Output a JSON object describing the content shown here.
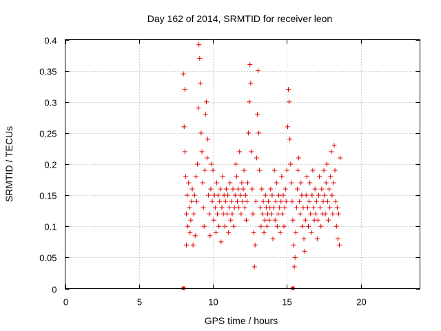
{
  "chart_data": {
    "type": "scatter",
    "title": "Day 162 of 2014, SRMTID for receiver leon",
    "xlabel": "GPS time / hours",
    "ylabel": "SRMTID / TECUs",
    "xlim": [
      0,
      24
    ],
    "ylim": [
      0,
      0.4
    ],
    "xticks": [
      0,
      5,
      10,
      15,
      20
    ],
    "xtick_labels": [
      "0",
      "5",
      "10",
      "15",
      "20"
    ],
    "yticks": [
      0,
      0.05,
      0.1,
      0.15,
      0.2,
      0.25,
      0.3,
      0.35,
      0.4
    ],
    "ytick_labels": [
      "0",
      "0.05",
      "0.1",
      "0.15",
      "0.2",
      "0.25",
      "0.3",
      "0.35",
      "0.4"
    ],
    "grid": true,
    "marker": "+",
    "color": "#e00000",
    "series": [
      {
        "name": "SRMTID",
        "points": [
          [
            8.0,
            0.345
          ],
          [
            8.05,
            0.26
          ],
          [
            8.1,
            0.32
          ],
          [
            8.1,
            0.22
          ],
          [
            8.15,
            0.18
          ],
          [
            8.2,
            0.12
          ],
          [
            8.2,
            0.07
          ],
          [
            8.25,
            0.15
          ],
          [
            8.3,
            0.1
          ],
          [
            8.35,
            0.17
          ],
          [
            8.4,
            0.13
          ],
          [
            8.45,
            0.09
          ],
          [
            8.5,
            0.11
          ],
          [
            8.55,
            0.14
          ],
          [
            8.6,
            0.16
          ],
          [
            8.65,
            0.07
          ],
          [
            8.7,
            0.12
          ],
          [
            8.75,
            0.15
          ],
          [
            8.8,
            0.085
          ],
          [
            8.85,
            0.18
          ],
          [
            8.9,
            0.14
          ],
          [
            8.95,
            0.2
          ],
          [
            9.0,
            0.29
          ],
          [
            9.05,
            0.392
          ],
          [
            9.1,
            0.37
          ],
          [
            9.15,
            0.33
          ],
          [
            9.2,
            0.25
          ],
          [
            9.25,
            0.22
          ],
          [
            9.3,
            0.17
          ],
          [
            9.35,
            0.13
          ],
          [
            9.4,
            0.1
          ],
          [
            9.45,
            0.19
          ],
          [
            9.5,
            0.28
          ],
          [
            9.55,
            0.3
          ],
          [
            9.6,
            0.21
          ],
          [
            9.65,
            0.24
          ],
          [
            9.7,
            0.15
          ],
          [
            9.75,
            0.12
          ],
          [
            9.8,
            0.085
          ],
          [
            9.85,
            0.16
          ],
          [
            9.9,
            0.2
          ],
          [
            9.95,
            0.14
          ],
          [
            10.0,
            0.19
          ],
          [
            10.05,
            0.11
          ],
          [
            10.1,
            0.15
          ],
          [
            10.15,
            0.13
          ],
          [
            10.2,
            0.09
          ],
          [
            10.25,
            0.17
          ],
          [
            10.3,
            0.12
          ],
          [
            10.35,
            0.15
          ],
          [
            10.4,
            0.1
          ],
          [
            10.45,
            0.14
          ],
          [
            10.5,
            0.16
          ],
          [
            10.55,
            0.075
          ],
          [
            10.6,
            0.13
          ],
          [
            10.65,
            0.18
          ],
          [
            10.7,
            0.12
          ],
          [
            10.75,
            0.15
          ],
          [
            10.8,
            0.1
          ],
          [
            10.85,
            0.14
          ],
          [
            10.9,
            0.16
          ],
          [
            10.95,
            0.12
          ],
          [
            11.0,
            0.15
          ],
          [
            11.05,
            0.09
          ],
          [
            11.1,
            0.13
          ],
          [
            11.15,
            0.17
          ],
          [
            11.2,
            0.11
          ],
          [
            11.25,
            0.14
          ],
          [
            11.3,
            0.12
          ],
          [
            11.35,
            0.16
          ],
          [
            11.4,
            0.1
          ],
          [
            11.45,
            0.13
          ],
          [
            11.5,
            0.15
          ],
          [
            11.55,
            0.2
          ],
          [
            11.6,
            0.18
          ],
          [
            11.65,
            0.14
          ],
          [
            11.7,
            0.16
          ],
          [
            11.75,
            0.13
          ],
          [
            11.8,
            0.22
          ],
          [
            11.85,
            0.15
          ],
          [
            11.9,
            0.12
          ],
          [
            11.95,
            0.17
          ],
          [
            12.0,
            0.14
          ],
          [
            12.05,
            0.16
          ],
          [
            12.1,
            0.19
          ],
          [
            12.15,
            0.13
          ],
          [
            12.2,
            0.15
          ],
          [
            12.25,
            0.11
          ],
          [
            12.3,
            0.14
          ],
          [
            12.35,
            0.17
          ],
          [
            12.4,
            0.25
          ],
          [
            12.45,
            0.3
          ],
          [
            12.5,
            0.36
          ],
          [
            12.55,
            0.33
          ],
          [
            12.6,
            0.22
          ],
          [
            12.65,
            0.16
          ],
          [
            12.7,
            0.12
          ],
          [
            12.75,
            0.09
          ],
          [
            12.8,
            0.035
          ],
          [
            12.85,
            0.07
          ],
          [
            12.9,
            0.14
          ],
          [
            12.95,
            0.21
          ],
          [
            13.0,
            0.28
          ],
          [
            13.05,
            0.35
          ],
          [
            13.1,
            0.25
          ],
          [
            13.15,
            0.19
          ],
          [
            13.2,
            0.13
          ],
          [
            13.25,
            0.1
          ],
          [
            13.3,
            0.16
          ],
          [
            13.35,
            0.12
          ],
          [
            13.4,
            0.14
          ],
          [
            13.45,
            0.09
          ],
          [
            13.5,
            0.11
          ],
          [
            13.55,
            0.15
          ],
          [
            13.6,
            0.13
          ],
          [
            13.65,
            0.1
          ],
          [
            13.7,
            0.12
          ],
          [
            13.75,
            0.14
          ],
          [
            13.8,
            0.11
          ],
          [
            13.85,
            0.13
          ],
          [
            13.9,
            0.16
          ],
          [
            13.95,
            0.12
          ],
          [
            14.0,
            0.15
          ],
          [
            14.05,
            0.08
          ],
          [
            14.1,
            0.13
          ],
          [
            14.15,
            0.19
          ],
          [
            14.2,
            0.11
          ],
          [
            14.25,
            0.14
          ],
          [
            14.3,
            0.17
          ],
          [
            14.35,
            0.1
          ],
          [
            14.4,
            0.12
          ],
          [
            14.45,
            0.15
          ],
          [
            14.5,
            0.13
          ],
          [
            14.55,
            0.09
          ],
          [
            14.6,
            0.14
          ],
          [
            14.65,
            0.18
          ],
          [
            14.7,
            0.12
          ],
          [
            14.75,
            0.15
          ],
          [
            14.8,
            0.1
          ],
          [
            14.85,
            0.13
          ],
          [
            14.9,
            0.16
          ],
          [
            14.95,
            0.14
          ],
          [
            15.0,
            0.19
          ],
          [
            15.05,
            0.26
          ],
          [
            15.1,
            0.32
          ],
          [
            15.15,
            0.3
          ],
          [
            15.2,
            0.24
          ],
          [
            15.25,
            0.2
          ],
          [
            15.3,
            0.17
          ],
          [
            15.35,
            0.14
          ],
          [
            15.4,
            0.11
          ],
          [
            15.45,
            0.07
          ],
          [
            15.5,
            0.035
          ],
          [
            15.55,
            0.05
          ],
          [
            15.6,
            0.09
          ],
          [
            15.65,
            0.13
          ],
          [
            15.7,
            0.16
          ],
          [
            15.75,
            0.19
          ],
          [
            15.8,
            0.21
          ],
          [
            15.85,
            0.14
          ],
          [
            15.9,
            0.12
          ],
          [
            15.95,
            0.17
          ],
          [
            16.0,
            0.15
          ],
          [
            16.05,
            0.1
          ],
          [
            16.1,
            0.13
          ],
          [
            16.15,
            0.08
          ],
          [
            16.2,
            0.06
          ],
          [
            16.25,
            0.11
          ],
          [
            16.3,
            0.15
          ],
          [
            16.35,
            0.18
          ],
          [
            16.4,
            0.13
          ],
          [
            16.45,
            0.1
          ],
          [
            16.5,
            0.14
          ],
          [
            16.55,
            0.17
          ],
          [
            16.6,
            0.12
          ],
          [
            16.65,
            0.09
          ],
          [
            16.7,
            0.15
          ],
          [
            16.75,
            0.19
          ],
          [
            16.8,
            0.13
          ],
          [
            16.85,
            0.11
          ],
          [
            16.9,
            0.16
          ],
          [
            16.95,
            0.12
          ],
          [
            17.0,
            0.14
          ],
          [
            17.05,
            0.08
          ],
          [
            17.1,
            0.11
          ],
          [
            17.15,
            0.15
          ],
          [
            17.2,
            0.18
          ],
          [
            17.25,
            0.13
          ],
          [
            17.3,
            0.1
          ],
          [
            17.35,
            0.16
          ],
          [
            17.4,
            0.12
          ],
          [
            17.45,
            0.14
          ],
          [
            17.5,
            0.19
          ],
          [
            17.55,
            0.15
          ],
          [
            17.6,
            0.12
          ],
          [
            17.65,
            0.17
          ],
          [
            17.7,
            0.2
          ],
          [
            17.75,
            0.14
          ],
          [
            17.8,
            0.11
          ],
          [
            17.85,
            0.16
          ],
          [
            17.9,
            0.13
          ],
          [
            17.95,
            0.18
          ],
          [
            18.0,
            0.22
          ],
          [
            18.05,
            0.15
          ],
          [
            18.1,
            0.12
          ],
          [
            18.15,
            0.17
          ],
          [
            18.2,
            0.23
          ],
          [
            18.25,
            0.19
          ],
          [
            18.3,
            0.14
          ],
          [
            18.35,
            0.1
          ],
          [
            18.4,
            0.13
          ],
          [
            18.45,
            0.08
          ],
          [
            18.5,
            0.12
          ],
          [
            18.55,
            0.07
          ],
          [
            18.6,
            0.21
          ]
        ]
      }
    ],
    "markers_on_axis": [
      8.0,
      15.4
    ]
  }
}
